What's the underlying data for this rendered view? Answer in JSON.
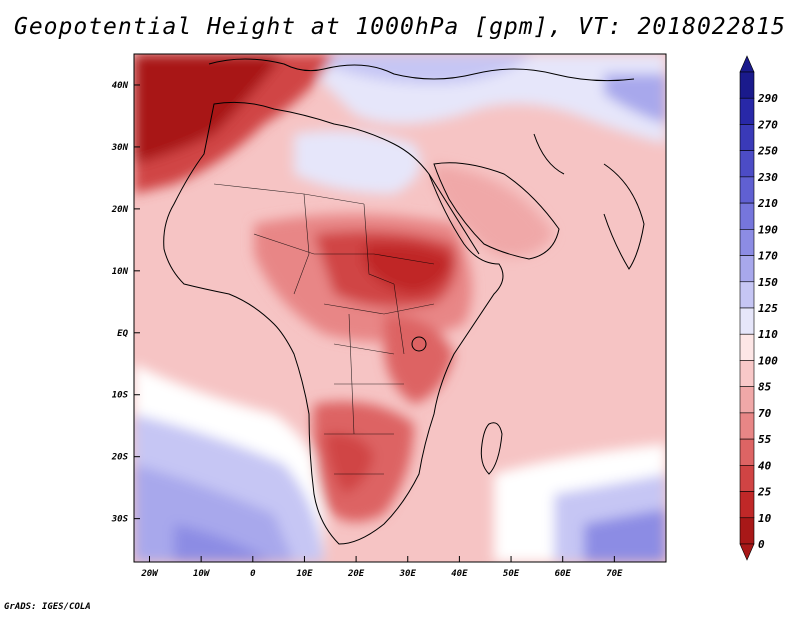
{
  "title": "Geopotential Height at 1000hPa [gpm], VT: 2018022815",
  "credit": "GrADS: IGES/COLA",
  "map": {
    "region": "Africa and Arabian Peninsula",
    "lon_range": [
      -23,
      80
    ],
    "lat_range": [
      -37,
      45
    ],
    "x_ticks": [
      "20W",
      "10W",
      "0",
      "10E",
      "20E",
      "30E",
      "40E",
      "50E",
      "60E",
      "70E"
    ],
    "y_ticks": [
      "40N",
      "30N",
      "20N",
      "10N",
      "EQ",
      "10S",
      "20S",
      "30S"
    ]
  },
  "colorbar": {
    "labels": [
      "290",
      "270",
      "250",
      "230",
      "210",
      "190",
      "170",
      "150",
      "125",
      "110",
      "100",
      "85",
      "70",
      "55",
      "40",
      "25",
      "10",
      "0"
    ],
    "colors": [
      "#1a1a8c",
      "#2828a8",
      "#3a3ab8",
      "#4c4cc6",
      "#6060d2",
      "#7676dc",
      "#8c8ce4",
      "#a8a8ec",
      "#c6c6f4",
      "#e6e6fa",
      "#fde6e6",
      "#f8c8c8",
      "#f0a8a8",
      "#e88686",
      "#dd6464",
      "#d04444",
      "#c02828",
      "#a81818"
    ]
  }
}
